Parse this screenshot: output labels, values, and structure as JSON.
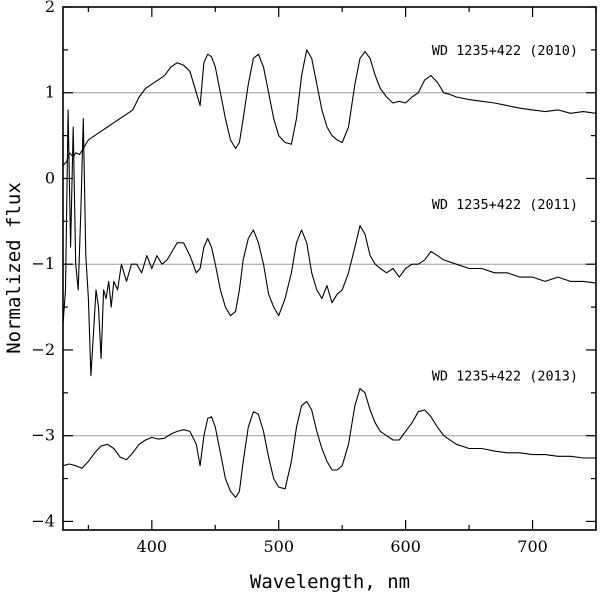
{
  "chart_data": {
    "type": "line",
    "xlabel": "Wavelength, nm",
    "ylabel": "Normalized flux",
    "xlim": [
      330,
      750
    ],
    "ylim": [
      -4.1,
      2.0
    ],
    "x_ticks": [
      400,
      500,
      600,
      700
    ],
    "y_ticks": [
      -4,
      -3,
      -2,
      -1,
      0,
      1,
      2
    ],
    "reference_lines": [
      1,
      -1,
      -3
    ],
    "line_color": "#000000",
    "refline_color": "#9a9a9a",
    "series": [
      {
        "name": "WD 1235+422 (2010)",
        "x": [
          330,
          333,
          335,
          338,
          340,
          343,
          346,
          350,
          355,
          360,
          365,
          370,
          375,
          380,
          385,
          390,
          395,
          400,
          405,
          410,
          415,
          420,
          425,
          430,
          435,
          438,
          441,
          444,
          447,
          450,
          454,
          458,
          462,
          466,
          469,
          472,
          476,
          480,
          484,
          488,
          492,
          496,
          500,
          505,
          510,
          514,
          518,
          522,
          526,
          530,
          534,
          538,
          542,
          546,
          550,
          555,
          560,
          564,
          568,
          572,
          576,
          580,
          585,
          590,
          595,
          600,
          605,
          610,
          615,
          620,
          625,
          630,
          635,
          640,
          650,
          660,
          670,
          680,
          690,
          700,
          710,
          720,
          730,
          740,
          750
        ],
        "y": [
          0.15,
          0.2,
          0.3,
          0.25,
          0.3,
          0.28,
          0.35,
          0.45,
          0.5,
          0.55,
          0.6,
          0.65,
          0.7,
          0.75,
          0.8,
          0.95,
          1.05,
          1.1,
          1.15,
          1.2,
          1.3,
          1.35,
          1.32,
          1.25,
          1.0,
          0.85,
          1.35,
          1.45,
          1.42,
          1.3,
          1.0,
          0.7,
          0.45,
          0.35,
          0.42,
          0.7,
          1.1,
          1.4,
          1.45,
          1.3,
          1.0,
          0.7,
          0.5,
          0.42,
          0.4,
          0.7,
          1.2,
          1.5,
          1.4,
          1.1,
          0.8,
          0.6,
          0.5,
          0.45,
          0.42,
          0.6,
          1.1,
          1.4,
          1.48,
          1.4,
          1.2,
          1.05,
          0.95,
          0.88,
          0.9,
          0.88,
          0.95,
          1.0,
          1.15,
          1.2,
          1.12,
          1.0,
          0.98,
          0.95,
          0.92,
          0.9,
          0.88,
          0.85,
          0.82,
          0.8,
          0.78,
          0.8,
          0.76,
          0.78,
          0.76
        ]
      },
      {
        "name": "WD 1235+422 (2011)",
        "x": [
          330,
          332,
          334,
          336,
          338,
          340,
          342,
          344,
          346,
          348,
          350,
          352,
          354,
          356,
          358,
          360,
          362,
          364,
          366,
          368,
          370,
          373,
          376,
          380,
          384,
          388,
          392,
          396,
          400,
          404,
          408,
          412,
          416,
          420,
          425,
          430,
          435,
          438,
          441,
          444,
          447,
          450,
          454,
          458,
          462,
          466,
          469,
          472,
          476,
          480,
          484,
          488,
          492,
          496,
          500,
          505,
          510,
          514,
          518,
          522,
          526,
          530,
          534,
          538,
          542,
          546,
          550,
          555,
          560,
          564,
          568,
          572,
          576,
          580,
          585,
          590,
          595,
          600,
          605,
          610,
          615,
          620,
          625,
          630,
          640,
          650,
          660,
          670,
          680,
          690,
          700,
          710,
          720,
          730,
          740,
          750
        ],
        "y": [
          -1.7,
          -1.3,
          0.8,
          -0.8,
          0.6,
          -1.0,
          -1.3,
          -0.4,
          0.7,
          -0.9,
          -1.4,
          -2.3,
          -1.8,
          -1.3,
          -1.5,
          -2.1,
          -1.3,
          -1.4,
          -1.2,
          -1.5,
          -1.2,
          -1.3,
          -1.0,
          -1.2,
          -1.0,
          -1.0,
          -1.1,
          -0.9,
          -1.05,
          -0.9,
          -1.0,
          -0.95,
          -0.85,
          -0.75,
          -0.75,
          -0.9,
          -1.1,
          -1.05,
          -0.8,
          -0.7,
          -0.8,
          -1.0,
          -1.3,
          -1.5,
          -1.6,
          -1.55,
          -1.3,
          -0.95,
          -0.7,
          -0.6,
          -0.75,
          -1.0,
          -1.35,
          -1.5,
          -1.6,
          -1.4,
          -1.1,
          -0.75,
          -0.6,
          -0.75,
          -1.1,
          -1.3,
          -1.4,
          -1.25,
          -1.45,
          -1.35,
          -1.3,
          -1.1,
          -0.8,
          -0.55,
          -0.65,
          -0.9,
          -1.0,
          -1.05,
          -1.1,
          -1.05,
          -1.15,
          -1.05,
          -1.0,
          -1.0,
          -0.95,
          -0.85,
          -0.9,
          -0.95,
          -1.0,
          -1.05,
          -1.05,
          -1.1,
          -1.1,
          -1.15,
          -1.15,
          -1.2,
          -1.15,
          -1.2,
          -1.2,
          -1.22
        ]
      },
      {
        "name": "WD 1235+422 (2013)",
        "x": [
          330,
          335,
          340,
          345,
          350,
          355,
          360,
          365,
          370,
          375,
          380,
          385,
          390,
          395,
          400,
          405,
          410,
          415,
          420,
          425,
          430,
          435,
          438,
          441,
          444,
          447,
          450,
          454,
          458,
          462,
          466,
          469,
          472,
          476,
          480,
          484,
          488,
          492,
          496,
          500,
          505,
          510,
          514,
          518,
          522,
          526,
          530,
          534,
          538,
          542,
          546,
          550,
          555,
          560,
          564,
          568,
          572,
          576,
          580,
          585,
          590,
          595,
          600,
          605,
          610,
          615,
          620,
          625,
          630,
          640,
          650,
          660,
          670,
          680,
          690,
          700,
          710,
          720,
          730,
          740,
          750
        ],
        "y": [
          -3.35,
          -3.33,
          -3.35,
          -3.38,
          -3.3,
          -3.2,
          -3.12,
          -3.1,
          -3.15,
          -3.25,
          -3.28,
          -3.2,
          -3.1,
          -3.05,
          -3.02,
          -3.04,
          -3.03,
          -2.98,
          -2.95,
          -2.93,
          -2.95,
          -3.1,
          -3.35,
          -3.0,
          -2.8,
          -2.78,
          -2.9,
          -3.2,
          -3.5,
          -3.65,
          -3.72,
          -3.65,
          -3.3,
          -2.9,
          -2.72,
          -2.75,
          -2.95,
          -3.25,
          -3.5,
          -3.6,
          -3.62,
          -3.3,
          -2.9,
          -2.65,
          -2.6,
          -2.7,
          -2.95,
          -3.15,
          -3.3,
          -3.4,
          -3.4,
          -3.35,
          -3.1,
          -2.65,
          -2.45,
          -2.5,
          -2.7,
          -2.85,
          -2.95,
          -3.0,
          -3.05,
          -3.05,
          -2.95,
          -2.85,
          -2.72,
          -2.7,
          -2.78,
          -2.9,
          -3.0,
          -3.1,
          -3.15,
          -3.15,
          -3.18,
          -3.2,
          -3.2,
          -3.22,
          -3.22,
          -3.24,
          -3.24,
          -3.26,
          -3.26
        ]
      }
    ]
  }
}
